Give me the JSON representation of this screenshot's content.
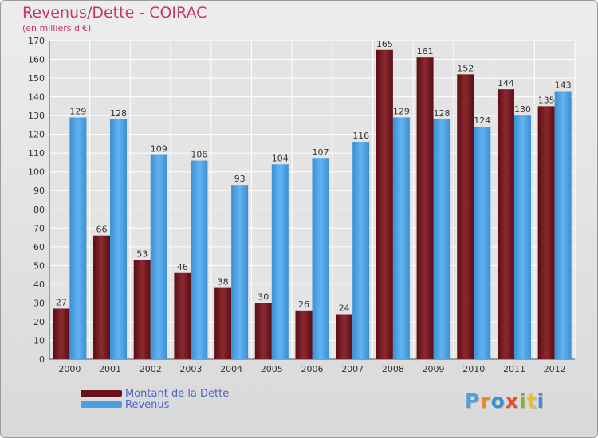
{
  "title": "Revenus/Dette - COIRAC",
  "subtitle": "(en milliers d'€)",
  "colors": {
    "dette": "#6b1219",
    "revenus": "#4aa0e0",
    "title": "#c2386a",
    "legend_text": "#4a63c8"
  },
  "legend": {
    "dette": "Montant de la Dette",
    "revenus": "Revenus"
  },
  "logo": "Proxiti",
  "chart_data": {
    "type": "bar",
    "title": "Revenus/Dette - COIRAC",
    "subtitle": "(en milliers d'€)",
    "categories": [
      "2000",
      "2001",
      "2002",
      "2003",
      "2004",
      "2005",
      "2006",
      "2007",
      "2008",
      "2009",
      "2010",
      "2011",
      "2012"
    ],
    "series": [
      {
        "name": "Montant de la Dette",
        "values": [
          27,
          66,
          53,
          46,
          38,
          30,
          26,
          24,
          165,
          161,
          152,
          144,
          135
        ]
      },
      {
        "name": "Revenus",
        "values": [
          129,
          128,
          109,
          106,
          93,
          104,
          107,
          116,
          129,
          128,
          124,
          130,
          143
        ]
      }
    ],
    "ylim": [
      0,
      170
    ],
    "yticks": [
      0,
      10,
      20,
      30,
      40,
      50,
      60,
      70,
      80,
      90,
      100,
      110,
      120,
      130,
      140,
      150,
      160,
      170
    ],
    "grid": true,
    "legend_position": "bottom-left"
  }
}
